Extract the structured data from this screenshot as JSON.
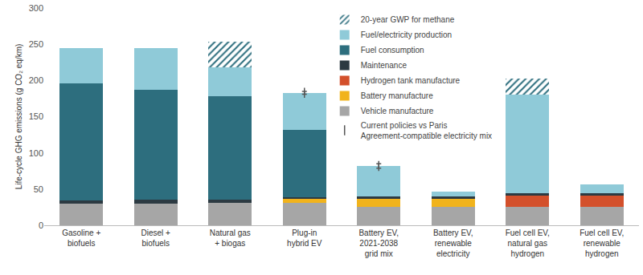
{
  "chart_data": {
    "type": "bar",
    "stacked": true,
    "grid": false,
    "legend": "upper center",
    "y_label": "Life-cycle GHG emissions (g CO₂ eq/km)",
    "categories": [
      "Gasoline +\nbiofuels",
      "Diesel +\nbiofuels",
      "Natural gas\n+ biogas",
      "Plug-in\nhybrid EV",
      "Battery EV,\n2021-2038\ngrid mix",
      "Battery EV,\nrenewable\nelectricity",
      "Fuel cell EV,\nnatural gas\nhydrogen",
      "Fuel cell EV,\nrenewable\nhydrogen"
    ],
    "ylim": [
      0,
      300
    ],
    "yticks": [
      0,
      50,
      100,
      150,
      200,
      250,
      300
    ],
    "series": [
      {
        "name": "Vehicle manufacture",
        "color": "#a6a6a6",
        "values": [
          30,
          30,
          31,
          31,
          26,
          26,
          26,
          26
        ]
      },
      {
        "name": "Battery manufacture",
        "color": "#f1b31c",
        "values": [
          null,
          null,
          null,
          5,
          11,
          11,
          null,
          null
        ]
      },
      {
        "name": "Hydrogen tank manufacture",
        "color": "#d3502b",
        "values": [
          null,
          null,
          null,
          null,
          null,
          null,
          15,
          15
        ]
      },
      {
        "name": "Maintenance",
        "color": "#2c3a42",
        "values": [
          4,
          5,
          4,
          3,
          3,
          3,
          3,
          3
        ]
      },
      {
        "name": "Fuel consumption",
        "color": "#2d6e7e",
        "values": [
          162,
          152,
          143,
          93,
          null,
          null,
          null,
          null
        ]
      },
      {
        "name": "Fuel/electricity production",
        "color": "#8fcad8",
        "values": [
          49,
          58,
          40,
          51,
          42,
          6,
          136,
          13
        ]
      },
      {
        "name": "20-year GWP for methane",
        "color": "#2d6e7e",
        "marker": "hatched",
        "values": [
          null,
          null,
          36,
          null,
          null,
          null,
          23,
          null
        ]
      },
      {
        "name": "Current policies vs Paris\nAgreement-compatible electricity mix",
        "type": "error_bar",
        "color": "#555555",
        "marker": "line-ns-open",
        "values": [
          null,
          null,
          null,
          2,
          3,
          null,
          null,
          null
        ]
      }
    ]
  }
}
